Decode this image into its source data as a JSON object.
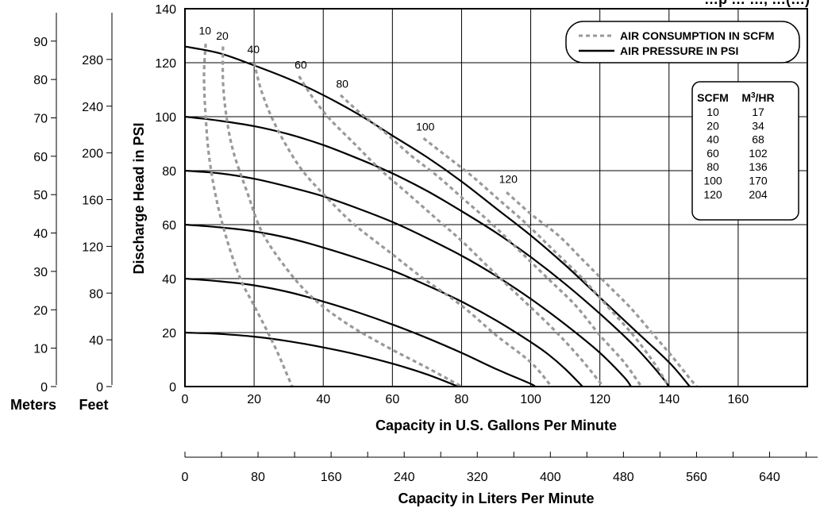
{
  "chart_data": {
    "type": "line",
    "title": "…p … …, …(…)",
    "xlabel": "Capacity in U.S. Gallons Per Minute",
    "ylabel": "Discharge Head in PSI",
    "xlim": [
      0,
      180
    ],
    "ylim": [
      0,
      140
    ],
    "x_ticks": [
      "0",
      "20",
      "40",
      "60",
      "80",
      "100",
      "120",
      "140",
      "160"
    ],
    "y_ticks": [
      "0",
      "20",
      "40",
      "60",
      "80",
      "100",
      "120",
      "140"
    ],
    "grid": true,
    "legend_position": "top-right",
    "legend": [
      {
        "label": "AIR CONSUMPTION IN SCFM",
        "style": "dashed",
        "color": "#999999"
      },
      {
        "label": "AIR PRESSURE IN PSI",
        "style": "solid",
        "color": "#000000"
      }
    ],
    "secondary_axes": {
      "feet": {
        "label": "Feet",
        "ticks": [
          "0",
          "40",
          "80",
          "120",
          "160",
          "200",
          "240",
          "280"
        ]
      },
      "meters": {
        "label": "Meters",
        "ticks": [
          "0",
          "10",
          "20",
          "30",
          "40",
          "50",
          "60",
          "70",
          "80",
          "90"
        ]
      },
      "liters": {
        "label": "Capacity in Liters Per Minute",
        "ticks": [
          "0",
          "80",
          "160",
          "240",
          "320",
          "400",
          "480",
          "560",
          "640"
        ]
      }
    },
    "conversion_table": {
      "headers": [
        "SCFM",
        "M",
        "3",
        "/HR"
      ],
      "rows": [
        [
          "10",
          "17"
        ],
        [
          "20",
          "34"
        ],
        [
          "40",
          "68"
        ],
        [
          "60",
          "102"
        ],
        [
          "80",
          "136"
        ],
        [
          "100",
          "170"
        ],
        [
          "120",
          "204"
        ]
      ]
    },
    "pressure_series": [
      {
        "psi": 20,
        "points": [
          [
            0,
            20
          ],
          [
            10,
            19.5
          ],
          [
            20,
            18.5
          ],
          [
            30,
            16.8
          ],
          [
            40,
            14.5
          ],
          [
            50,
            11.8
          ],
          [
            60,
            8.5
          ],
          [
            70,
            4.5
          ],
          [
            79,
            0
          ]
        ]
      },
      {
        "psi": 40,
        "points": [
          [
            0,
            40
          ],
          [
            10,
            39
          ],
          [
            20,
            37.5
          ],
          [
            30,
            35
          ],
          [
            40,
            31.5
          ],
          [
            50,
            27.5
          ],
          [
            60,
            23
          ],
          [
            70,
            18
          ],
          [
            80,
            12.5
          ],
          [
            90,
            6.5
          ],
          [
            100,
            1
          ],
          [
            101,
            0
          ]
        ]
      },
      {
        "psi": 60,
        "points": [
          [
            0,
            60
          ],
          [
            10,
            59
          ],
          [
            20,
            57.5
          ],
          [
            30,
            55
          ],
          [
            40,
            51.5
          ],
          [
            50,
            47.5
          ],
          [
            60,
            43
          ],
          [
            70,
            37.5
          ],
          [
            80,
            31.5
          ],
          [
            90,
            24.5
          ],
          [
            100,
            16.5
          ],
          [
            105,
            12
          ],
          [
            110,
            6.5
          ],
          [
            115,
            0
          ]
        ]
      },
      {
        "psi": 80,
        "points": [
          [
            0,
            80
          ],
          [
            10,
            79
          ],
          [
            20,
            77
          ],
          [
            30,
            74
          ],
          [
            40,
            70.5
          ],
          [
            50,
            66
          ],
          [
            60,
            61
          ],
          [
            70,
            55
          ],
          [
            80,
            48.5
          ],
          [
            90,
            41
          ],
          [
            100,
            32.5
          ],
          [
            110,
            23
          ],
          [
            120,
            12.5
          ],
          [
            127,
            3.5
          ],
          [
            129,
            0
          ]
        ]
      },
      {
        "psi": 100,
        "points": [
          [
            0,
            100
          ],
          [
            10,
            98.5
          ],
          [
            20,
            96.5
          ],
          [
            30,
            93.5
          ],
          [
            40,
            89.5
          ],
          [
            50,
            84.5
          ],
          [
            60,
            79
          ],
          [
            70,
            72.5
          ],
          [
            80,
            65
          ],
          [
            90,
            57
          ],
          [
            100,
            48
          ],
          [
            110,
            38
          ],
          [
            120,
            27
          ],
          [
            130,
            15
          ],
          [
            137,
            5
          ],
          [
            140,
            0
          ]
        ]
      },
      {
        "psi": 125,
        "points": [
          [
            0,
            126
          ],
          [
            10,
            123.5
          ],
          [
            20,
            119
          ],
          [
            30,
            114
          ],
          [
            40,
            108
          ],
          [
            50,
            101
          ],
          [
            60,
            93
          ],
          [
            70,
            85
          ],
          [
            80,
            76
          ],
          [
            90,
            66
          ],
          [
            100,
            56
          ],
          [
            110,
            45
          ],
          [
            120,
            33
          ],
          [
            130,
            21
          ],
          [
            140,
            9
          ],
          [
            146,
            0
          ]
        ]
      }
    ],
    "scfm_series": [
      {
        "scfm": "10",
        "points": [
          [
            6,
            127
          ],
          [
            5.5,
            115
          ],
          [
            6,
            100
          ],
          [
            7,
            85
          ],
          [
            9,
            70
          ],
          [
            12,
            55
          ],
          [
            16,
            40
          ],
          [
            20,
            30
          ],
          [
            24,
            20
          ],
          [
            27,
            12
          ],
          [
            29,
            6
          ],
          [
            31,
            0
          ]
        ]
      },
      {
        "scfm": "20",
        "points": [
          [
            11,
            126
          ],
          [
            11,
            113
          ],
          [
            12,
            100
          ],
          [
            14,
            87
          ],
          [
            18,
            72
          ],
          [
            22,
            58
          ],
          [
            28,
            46
          ],
          [
            36,
            34
          ],
          [
            46,
            24
          ],
          [
            58,
            15
          ],
          [
            70,
            7
          ],
          [
            80,
            0
          ]
        ]
      },
      {
        "scfm": "40",
        "points": [
          [
            20,
            120
          ],
          [
            22,
            110
          ],
          [
            25,
            100
          ],
          [
            29,
            90
          ],
          [
            34,
            80
          ],
          [
            41,
            70
          ],
          [
            49,
            60
          ],
          [
            59,
            50
          ],
          [
            69,
            40
          ],
          [
            80,
            30
          ],
          [
            90,
            19
          ],
          [
            100,
            9
          ],
          [
            106,
            0
          ]
        ]
      },
      {
        "scfm": "60",
        "points": [
          [
            33,
            115
          ],
          [
            37,
            107
          ],
          [
            42,
            99
          ],
          [
            49,
            90
          ],
          [
            56,
            81
          ],
          [
            64,
            72
          ],
          [
            72,
            63
          ],
          [
            80,
            54
          ],
          [
            88,
            44
          ],
          [
            97,
            33
          ],
          [
            106,
            22
          ],
          [
            114,
            11
          ],
          [
            121,
            0
          ]
        ]
      },
      {
        "scfm": "80",
        "points": [
          [
            45,
            108
          ],
          [
            51,
            101
          ],
          [
            58,
            94
          ],
          [
            65,
            86
          ],
          [
            73,
            78
          ],
          [
            81,
            69
          ],
          [
            89,
            60
          ],
          [
            97,
            50
          ],
          [
            105,
            40
          ],
          [
            113,
            30
          ],
          [
            120,
            19
          ],
          [
            127,
            9
          ],
          [
            132,
            0
          ]
        ]
      },
      {
        "scfm": "100",
        "points": [
          [
            69,
            92
          ],
          [
            75,
            86
          ],
          [
            83,
            78
          ],
          [
            91,
            69
          ],
          [
            99,
            60
          ],
          [
            107,
            50
          ],
          [
            115,
            40
          ],
          [
            122,
            30
          ],
          [
            129,
            20
          ],
          [
            135,
            10
          ],
          [
            140,
            0
          ]
        ]
      },
      {
        "scfm": "120",
        "points": [
          [
            93,
            72
          ],
          [
            100,
            64
          ],
          [
            108,
            56
          ],
          [
            115,
            47
          ],
          [
            122,
            38
          ],
          [
            129,
            29
          ],
          [
            135,
            20
          ],
          [
            141,
            11
          ],
          [
            146,
            3
          ],
          [
            148,
            0
          ]
        ]
      }
    ],
    "curve_labels": [
      {
        "text": "10",
        "x": 5.8,
        "y": 130.5
      },
      {
        "text": "20",
        "x": 10.8,
        "y": 128.5
      },
      {
        "text": "40",
        "x": 19.8,
        "y": 123.5
      },
      {
        "text": "60",
        "x": 33.5,
        "y": 117.8
      },
      {
        "text": "80",
        "x": 45.5,
        "y": 110.8
      },
      {
        "text": "100",
        "x": 69.5,
        "y": 94.8
      },
      {
        "text": "120",
        "x": 93.5,
        "y": 75.5
      }
    ]
  }
}
